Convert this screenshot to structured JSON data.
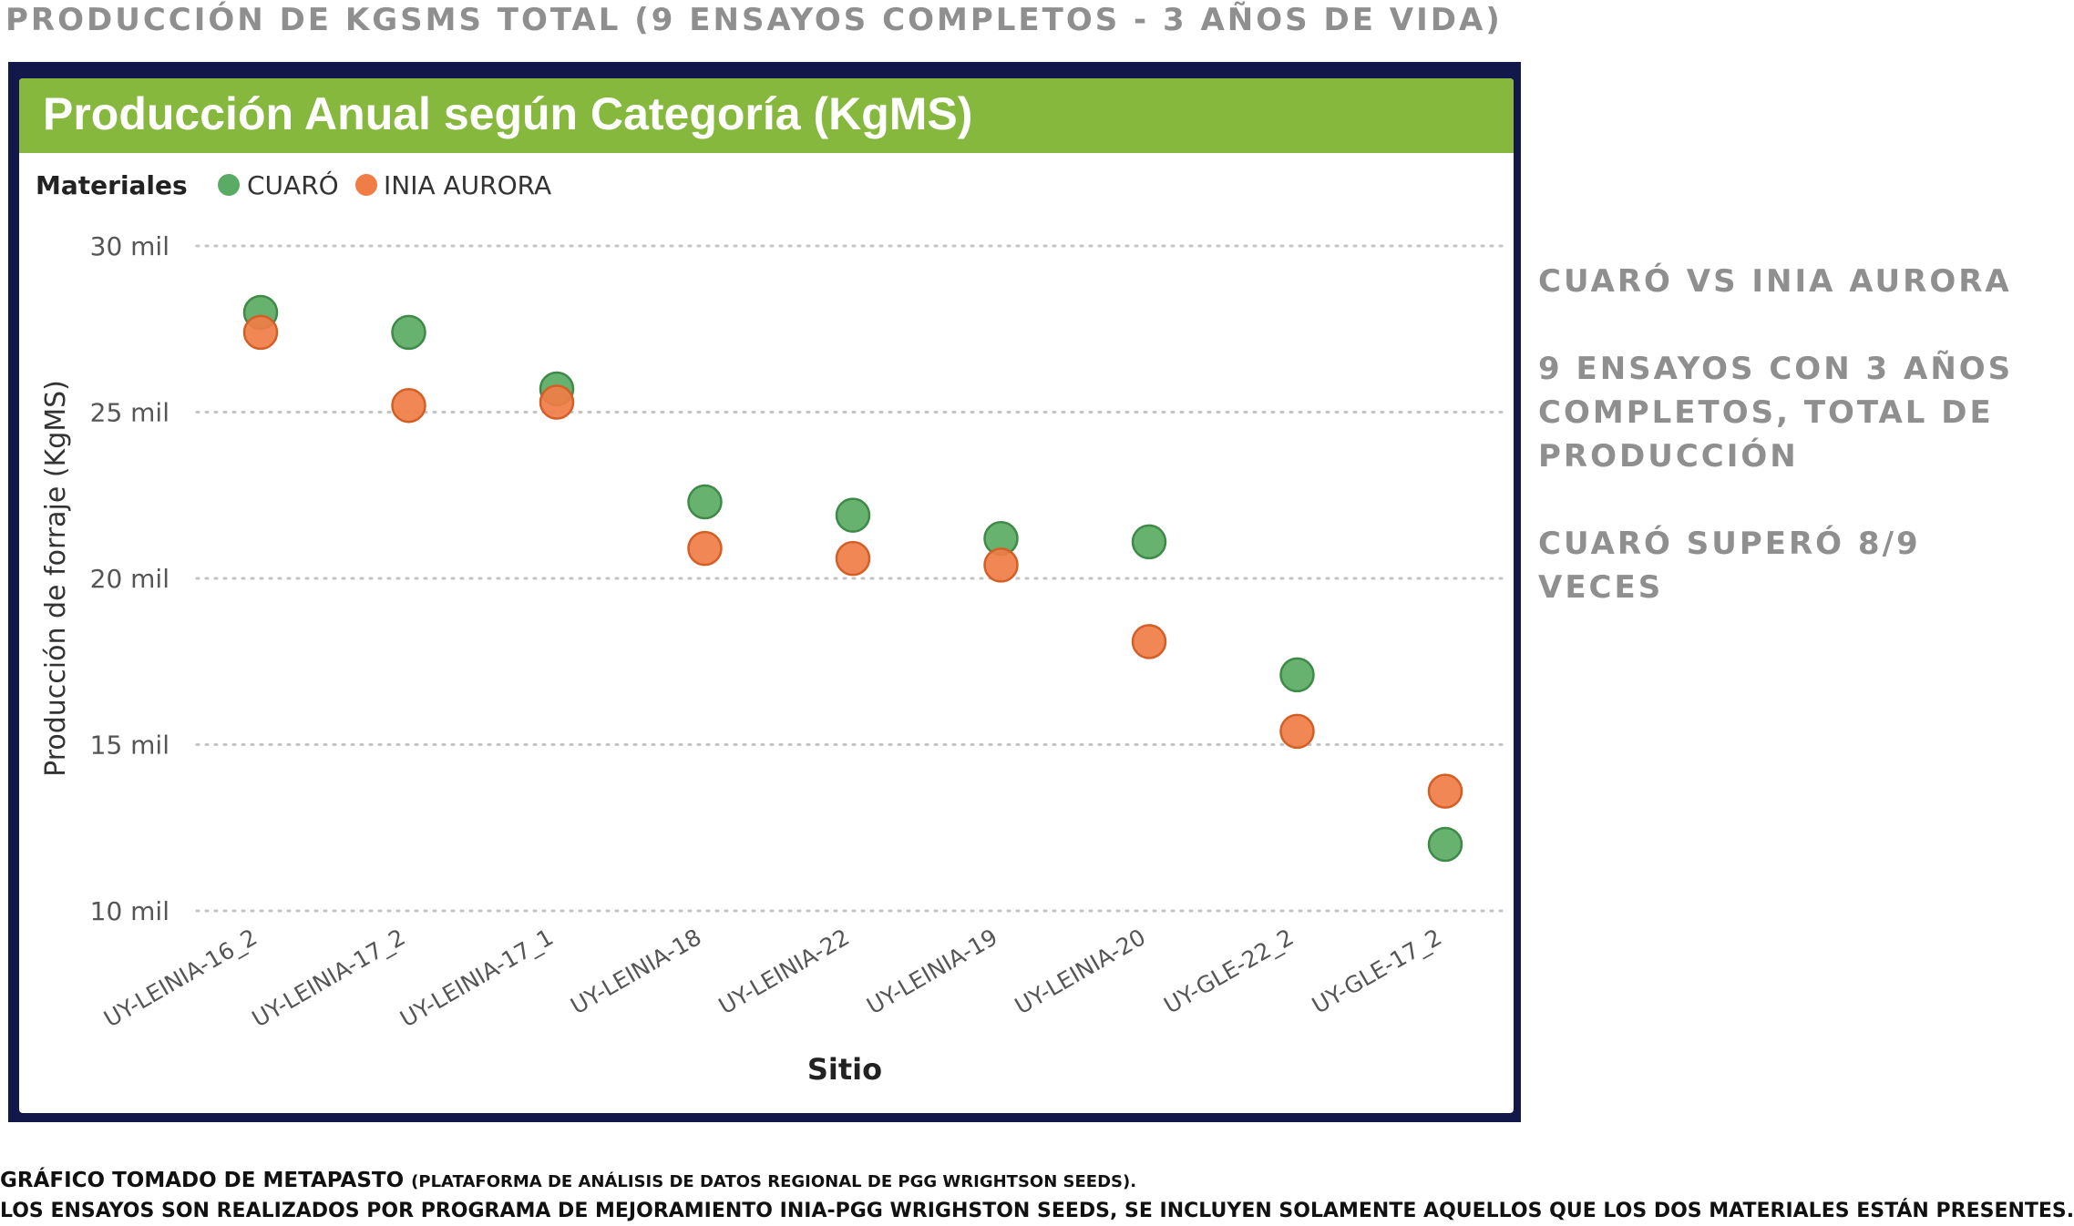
{
  "slide": {
    "title": "PRODUCCIÓN DE KGSMS TOTAL (9 ENSAYOS COMPLETOS - 3 AÑOS DE VIDA)"
  },
  "side_notes": [
    "CUARÓ VS INIA AURORA",
    "9 ENSAYOS CON 3 AÑOS COMPLETOS, TOTAL DE PRODUCCIÓN",
    "CUARÓ SUPERÓ 8/9 VECES"
  ],
  "footer": {
    "source_main": "GRÁFICO TOMADO DE METAPASTO",
    "source_detail": "(PLATAFORMA DE ANÁLISIS DE DATOS REGIONAL DE PGG WRIGHTSON SEEDS).",
    "note": "LOS ENSAYOS SON REALIZADOS POR PROGRAMA DE MEJORAMIENTO INIA-PGG WRIGHSTON SEEDS,  SE INCLUYEN SOLAMENTE AQUELLOS QUE LOS DOS MATERIALES ESTÁN PRESENTES."
  },
  "colors": {
    "frame": "#13184a",
    "header": "#86b83e",
    "cuaro": "#5aab63",
    "cuaro_stroke": "#3f8a48",
    "aurora": "#f07d45",
    "aurora_stroke": "#d45f26",
    "side_text": "#8f8f8f"
  },
  "chart_data": {
    "type": "scatter",
    "title": "Producción Anual según Categoría (KgMS)",
    "legend_title": "Materiales",
    "legend_position": "top-left",
    "xlabel": "Sitio",
    "ylabel": "Producción de forraje (KgMS)",
    "ylim": [
      10000,
      30000
    ],
    "yticks": [
      10000,
      15000,
      20000,
      25000,
      30000
    ],
    "ytick_labels": [
      "10 mil",
      "15 mil",
      "20 mil",
      "25 mil",
      "30 mil"
    ],
    "grid": "horizontal dotted",
    "categories": [
      "UY-LEINIA-16_2",
      "UY-LEINIA-17_2",
      "UY-LEINIA-17_1",
      "UY-LEINIA-18",
      "UY-LEINIA-22",
      "UY-LEINIA-19",
      "UY-LEINIA-20",
      "UY-GLE-22_2",
      "UY-GLE-17_2"
    ],
    "series": [
      {
        "name": "CUARÓ",
        "values": [
          28000,
          27400,
          25700,
          22300,
          21900,
          21200,
          21100,
          17100,
          12000
        ]
      },
      {
        "name": "INIA AURORA",
        "values": [
          27400,
          25200,
          25300,
          20900,
          20600,
          20400,
          18100,
          15400,
          13600
        ]
      }
    ]
  }
}
